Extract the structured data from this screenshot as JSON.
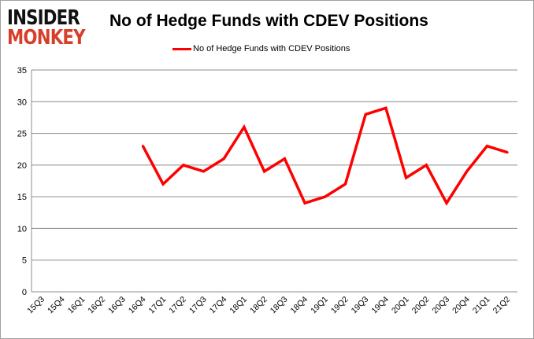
{
  "logo": {
    "line1": "INSIDER",
    "line2": "MONKEY"
  },
  "chart_data": {
    "type": "line",
    "title": "No of Hedge Funds with CDEV Positions",
    "xlabel": "",
    "ylabel": "",
    "categories": [
      "15Q3",
      "15Q4",
      "16Q1",
      "16Q2",
      "16Q3",
      "16Q4",
      "17Q1",
      "17Q2",
      "17Q3",
      "17Q4",
      "18Q1",
      "18Q2",
      "18Q3",
      "18Q4",
      "19Q1",
      "19Q2",
      "19Q3",
      "19Q4",
      "20Q1",
      "20Q2",
      "20Q3",
      "20Q4",
      "21Q1",
      "21Q2"
    ],
    "series": [
      {
        "name": "No of Hedge Funds with CDEV Positions",
        "color": "#ff0000",
        "values": [
          null,
          null,
          null,
          null,
          null,
          23,
          17,
          20,
          19,
          21,
          26,
          19,
          21,
          14,
          15,
          17,
          28,
          29,
          18,
          20,
          14,
          19,
          23,
          22
        ]
      }
    ],
    "ylim": [
      0,
      35
    ],
    "yticks": [
      0,
      5,
      10,
      15,
      20,
      25,
      30,
      35
    ],
    "grid": true,
    "legend": "top-center"
  }
}
